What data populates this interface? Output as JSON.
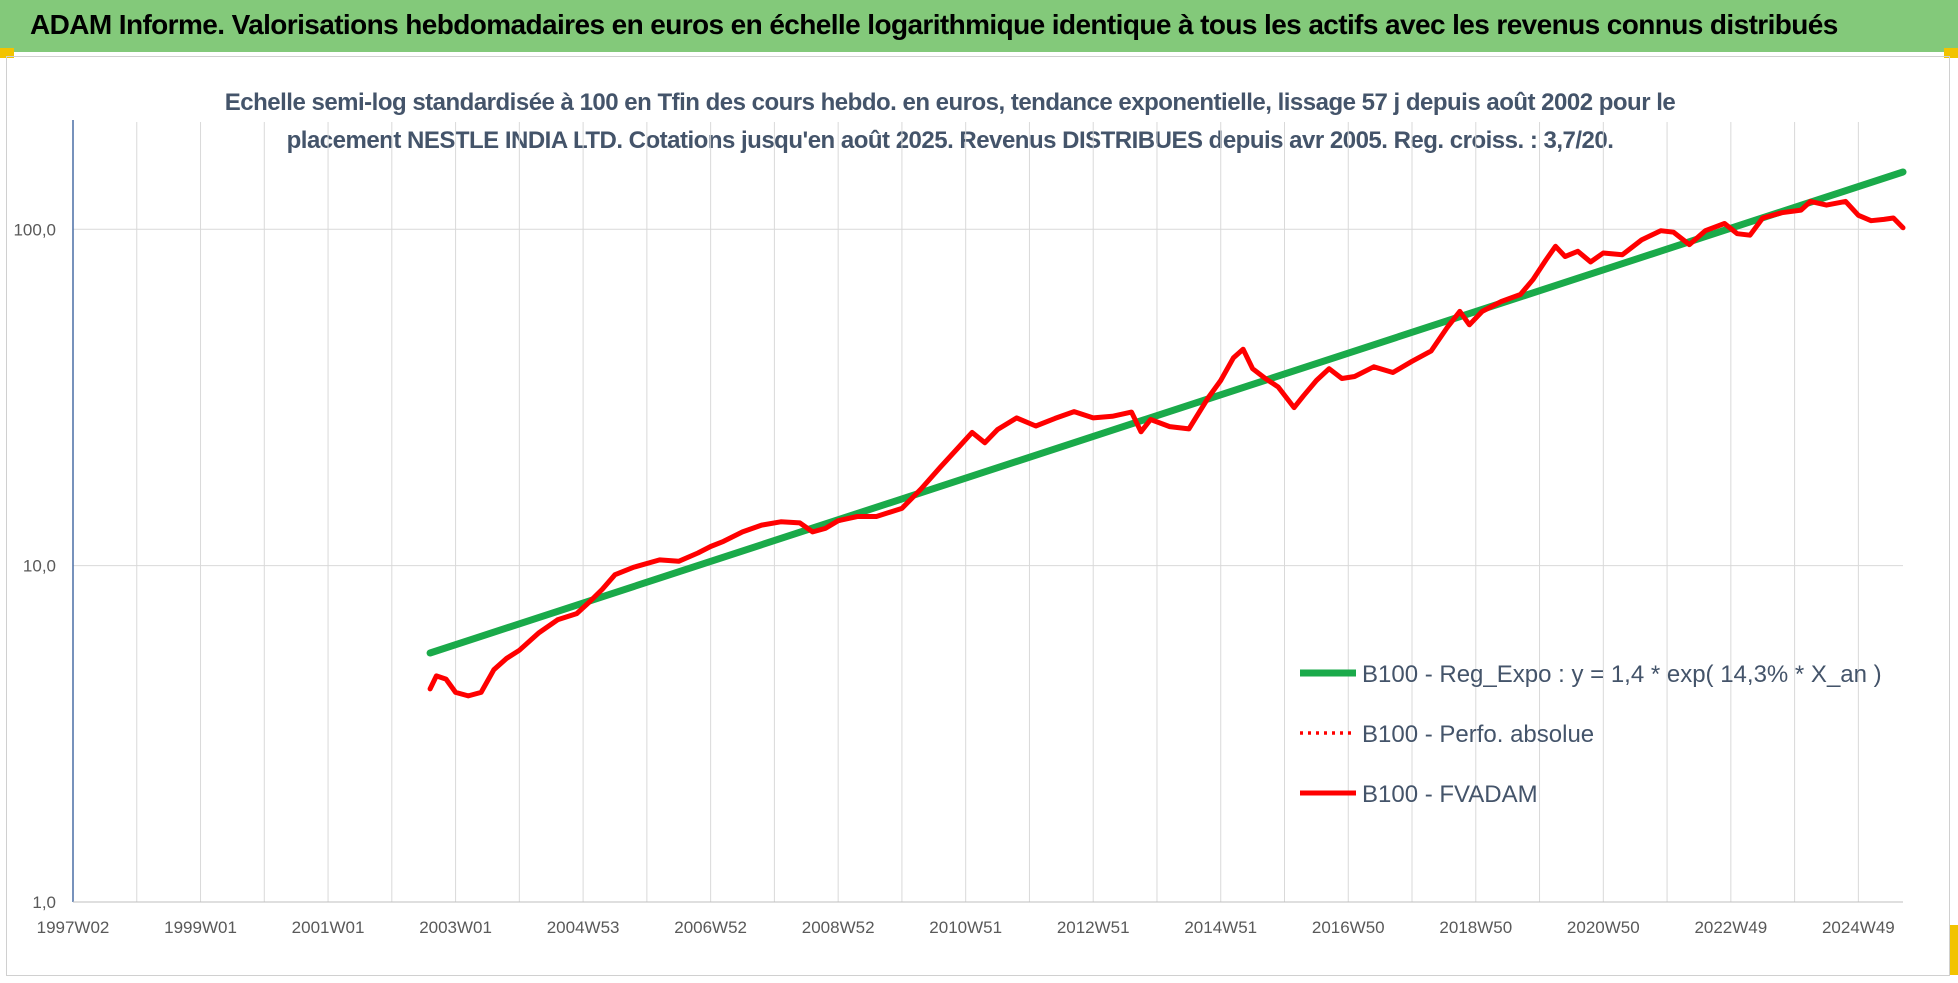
{
  "header": {
    "title": "ADAM Informe. Valorisations hebdomadaires en euros en échelle logarithmique identique à tous les actifs avec les revenus connus distribués"
  },
  "colors": {
    "header_bg": "#83c97a",
    "corner_marks": "#f2c300",
    "trend": "#1aaa4a",
    "fvadam": "#ff0000",
    "perfo": "#ff0000",
    "axis_text": "#595959",
    "title_text": "#44546a"
  },
  "chart_data": {
    "type": "line",
    "title_line1": "Echelle semi-log standardisée à 100 en Tfin des cours hebdo. en euros, tendance exponentielle, lissage 57 j depuis août 2002 pour le",
    "title_line2": "placement NESTLE INDIA LTD. Cotations jusqu'en août 2025. Revenus DISTRIBUES depuis avr 2005. Reg. croiss. : 3,7/20.",
    "y_scale": "log",
    "ylim": [
      1,
      200
    ],
    "y_ticks": [
      {
        "value": 1,
        "label": "1,0"
      },
      {
        "value": 10,
        "label": "10,0"
      },
      {
        "value": 100,
        "label": "100,0"
      }
    ],
    "xlim": [
      1997.0,
      2025.7
    ],
    "x_ticks": [
      {
        "year": 1997.0,
        "label": "1997W02"
      },
      {
        "year": 1999.0,
        "label": "1999W01"
      },
      {
        "year": 2001.0,
        "label": "2001W01"
      },
      {
        "year": 2003.0,
        "label": "2003W01"
      },
      {
        "year": 2005.0,
        "label": "2004W53"
      },
      {
        "year": 2007.0,
        "label": "2006W52"
      },
      {
        "year": 2009.0,
        "label": "2008W52"
      },
      {
        "year": 2011.0,
        "label": "2010W51"
      },
      {
        "year": 2013.0,
        "label": "2012W51"
      },
      {
        "year": 2015.0,
        "label": "2014W51"
      },
      {
        "year": 2017.0,
        "label": "2016W50"
      },
      {
        "year": 2019.0,
        "label": "2018W50"
      },
      {
        "year": 2021.0,
        "label": "2020W50"
      },
      {
        "year": 2023.0,
        "label": "2022W49"
      },
      {
        "year": 2025.0,
        "label": "2024W49"
      }
    ],
    "grid": "vertical-yearly and horizontal-decades",
    "legend_placement": "right-center",
    "series": [
      {
        "name": "B100 - Reg_Expo : y = 1,4 * exp( 14,3% *  X_an )",
        "style": "solid",
        "color": "#1aaa4a",
        "points": [
          [
            2002.6,
            5.5
          ],
          [
            2025.7,
            148
          ]
        ]
      },
      {
        "name": "B100 - Perfo. absolue",
        "style": "dotted",
        "color": "#ff0000",
        "points": []
      },
      {
        "name": "B100 - FVADAM",
        "style": "solid",
        "color": "#ff0000",
        "points": [
          [
            2002.6,
            4.3
          ],
          [
            2002.7,
            4.7
          ],
          [
            2002.85,
            4.6
          ],
          [
            2003.0,
            4.2
          ],
          [
            2003.2,
            4.1
          ],
          [
            2003.4,
            4.2
          ],
          [
            2003.6,
            4.9
          ],
          [
            2003.8,
            5.3
          ],
          [
            2004.0,
            5.6
          ],
          [
            2004.3,
            6.3
          ],
          [
            2004.6,
            6.9
          ],
          [
            2004.9,
            7.2
          ],
          [
            2005.1,
            7.8
          ],
          [
            2005.3,
            8.5
          ],
          [
            2005.5,
            9.4
          ],
          [
            2005.8,
            9.9
          ],
          [
            2006.2,
            10.4
          ],
          [
            2006.5,
            10.3
          ],
          [
            2006.8,
            10.9
          ],
          [
            2007.0,
            11.4
          ],
          [
            2007.2,
            11.8
          ],
          [
            2007.5,
            12.6
          ],
          [
            2007.8,
            13.2
          ],
          [
            2008.1,
            13.5
          ],
          [
            2008.4,
            13.4
          ],
          [
            2008.6,
            12.6
          ],
          [
            2008.8,
            12.9
          ],
          [
            2009.0,
            13.6
          ],
          [
            2009.3,
            14.0
          ],
          [
            2009.6,
            14.0
          ],
          [
            2010.0,
            14.8
          ],
          [
            2010.3,
            16.9
          ],
          [
            2010.6,
            19.6
          ],
          [
            2010.9,
            22.6
          ],
          [
            2011.1,
            24.9
          ],
          [
            2011.3,
            23.2
          ],
          [
            2011.5,
            25.4
          ],
          [
            2011.8,
            27.5
          ],
          [
            2012.1,
            26.0
          ],
          [
            2012.4,
            27.4
          ],
          [
            2012.7,
            28.7
          ],
          [
            2013.0,
            27.5
          ],
          [
            2013.3,
            27.8
          ],
          [
            2013.6,
            28.6
          ],
          [
            2013.75,
            25.0
          ],
          [
            2013.9,
            27.2
          ],
          [
            2014.2,
            25.9
          ],
          [
            2014.5,
            25.5
          ],
          [
            2014.8,
            31.5
          ],
          [
            2015.0,
            35.5
          ],
          [
            2015.2,
            41.5
          ],
          [
            2015.35,
            44.0
          ],
          [
            2015.5,
            38.5
          ],
          [
            2015.7,
            36.0
          ],
          [
            2015.9,
            34.0
          ],
          [
            2016.15,
            29.5
          ],
          [
            2016.3,
            32.0
          ],
          [
            2016.5,
            35.5
          ],
          [
            2016.7,
            38.5
          ],
          [
            2016.9,
            36.0
          ],
          [
            2017.1,
            36.5
          ],
          [
            2017.4,
            39.0
          ],
          [
            2017.7,
            37.5
          ],
          [
            2018.0,
            40.5
          ],
          [
            2018.3,
            43.5
          ],
          [
            2018.55,
            51.0
          ],
          [
            2018.75,
            57.0
          ],
          [
            2018.9,
            52.0
          ],
          [
            2019.1,
            57.0
          ],
          [
            2019.4,
            61.0
          ],
          [
            2019.7,
            64.0
          ],
          [
            2019.9,
            71.0
          ],
          [
            2020.1,
            81.0
          ],
          [
            2020.25,
            89.0
          ],
          [
            2020.4,
            83.0
          ],
          [
            2020.6,
            86.0
          ],
          [
            2020.8,
            80.0
          ],
          [
            2021.0,
            85.0
          ],
          [
            2021.3,
            84.0
          ],
          [
            2021.6,
            93.0
          ],
          [
            2021.9,
            99.0
          ],
          [
            2022.1,
            98.0
          ],
          [
            2022.35,
            90.0
          ],
          [
            2022.6,
            99.0
          ],
          [
            2022.9,
            104.0
          ],
          [
            2023.1,
            97.0
          ],
          [
            2023.3,
            96.0
          ],
          [
            2023.5,
            108.0
          ],
          [
            2023.8,
            112.0
          ],
          [
            2024.1,
            114.0
          ],
          [
            2024.25,
            121.0
          ],
          [
            2024.5,
            118.0
          ],
          [
            2024.8,
            121.0
          ],
          [
            2025.0,
            110.0
          ],
          [
            2025.2,
            106.0
          ],
          [
            2025.4,
            107.0
          ],
          [
            2025.55,
            108.0
          ],
          [
            2025.7,
            101.0
          ]
        ]
      }
    ]
  }
}
